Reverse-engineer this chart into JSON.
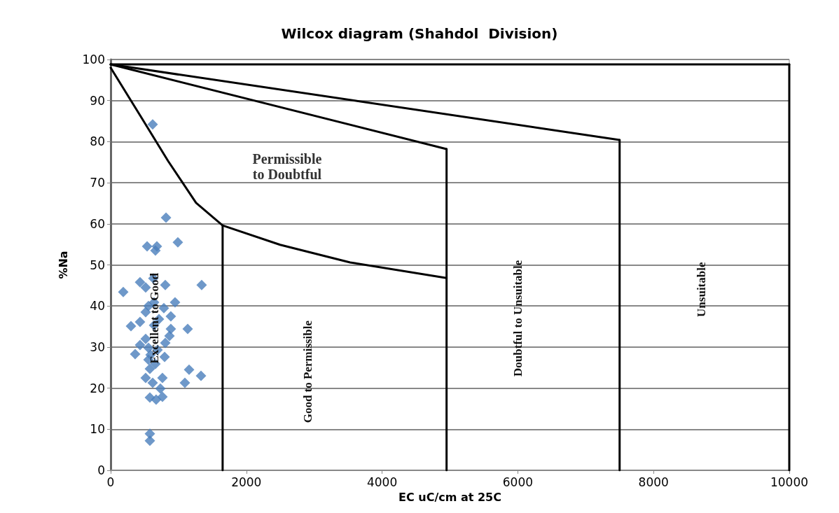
{
  "chart_data": {
    "type": "scatter",
    "title": "Wilcox diagram (Shahdol  Division)",
    "xlabel": "EC uC/cm at 25C",
    "ylabel": "%Na",
    "xlim": [
      0,
      10000
    ],
    "xticks": [
      0,
      2000,
      4000,
      6000,
      8000,
      10000
    ],
    "ylim": [
      0,
      100
    ],
    "yticks": [
      0,
      10,
      20,
      30,
      40,
      50,
      60,
      70,
      80,
      90,
      100
    ],
    "grid": "y",
    "series": [
      {
        "color": "#4a7ebb",
        "marker": "diamond",
        "x": [
          619,
          816,
          990,
          537,
          681,
          660,
          629,
          433,
          1341,
          516,
          805,
          186,
          949,
          640,
          557,
          784,
          516,
          887,
          712,
          433,
          299,
          640,
          887,
          1135,
          867,
          516,
          805,
          433,
          557,
          691,
          361,
          588,
          795,
          557,
          660,
          1156,
          578,
          763,
          1331,
          516,
          1094,
          619,
          733,
          578,
          763,
          670,
          578,
          578
        ],
        "values": [
          84.2,
          61.5,
          55.5,
          54.5,
          54.5,
          53.5,
          46.7,
          45.8,
          45.1,
          44.5,
          45.1,
          43.4,
          40.9,
          40.9,
          40.0,
          39.5,
          38.5,
          37.5,
          36.8,
          36.1,
          35.1,
          35.3,
          34.4,
          34.4,
          32.7,
          32.0,
          31.0,
          30.5,
          29.8,
          29.3,
          28.3,
          28.1,
          27.6,
          26.9,
          25.9,
          24.5,
          24.7,
          22.5,
          23.0,
          22.5,
          21.3,
          21.3,
          19.9,
          17.7,
          17.9,
          17.2,
          8.9,
          7.2
        ]
      },
      {
        "type": "line",
        "color": "#000000",
        "marker": "none",
        "line_style": "solid",
        "x": [
          0,
          10000
        ],
        "values": [
          98.8,
          98.8
        ]
      },
      {
        "type": "line",
        "color": "#000000",
        "marker": "none",
        "line_style": "solid",
        "x": [
          0,
          7500
        ],
        "values": [
          98.8,
          80.4
        ]
      },
      {
        "type": "line",
        "color": "#000000",
        "marker": "none",
        "line_style": "solid",
        "x": [
          0,
          4950
        ],
        "values": [
          98.8,
          78.2
        ]
      },
      {
        "type": "line",
        "color": "#000000",
        "marker": "none",
        "line_style": "solid",
        "x": [
          0,
          433,
          846,
          1259,
          1650,
          2497,
          3529,
          4950
        ],
        "values": [
          98,
          86.4,
          75.3,
          65.1,
          59.6,
          54.9,
          50.6,
          46.8
        ]
      },
      {
        "type": "line",
        "color": "#000000",
        "marker": "none",
        "line_style": "solid",
        "x": [
          1650,
          1650
        ],
        "values": [
          59.6,
          0
        ]
      },
      {
        "type": "line",
        "color": "#000000",
        "marker": "none",
        "line_style": "solid",
        "x": [
          4950,
          4950
        ],
        "values": [
          78.2,
          0
        ]
      },
      {
        "type": "line",
        "color": "#000000",
        "marker": "none",
        "line_style": "solid",
        "x": [
          7500,
          7500
        ],
        "values": [
          80.4,
          0
        ]
      },
      {
        "type": "line",
        "color": "#000000",
        "marker": "none",
        "line_style": "solid",
        "x": [
          10000,
          10000
        ],
        "values": [
          98.8,
          0
        ]
      }
    ],
    "annotations": [
      "Permissible\nto Doubtful",
      "Excellent to Good",
      "Good to Permissible",
      "Doubtful to Unsuitable",
      "Unsuitable"
    ]
  }
}
